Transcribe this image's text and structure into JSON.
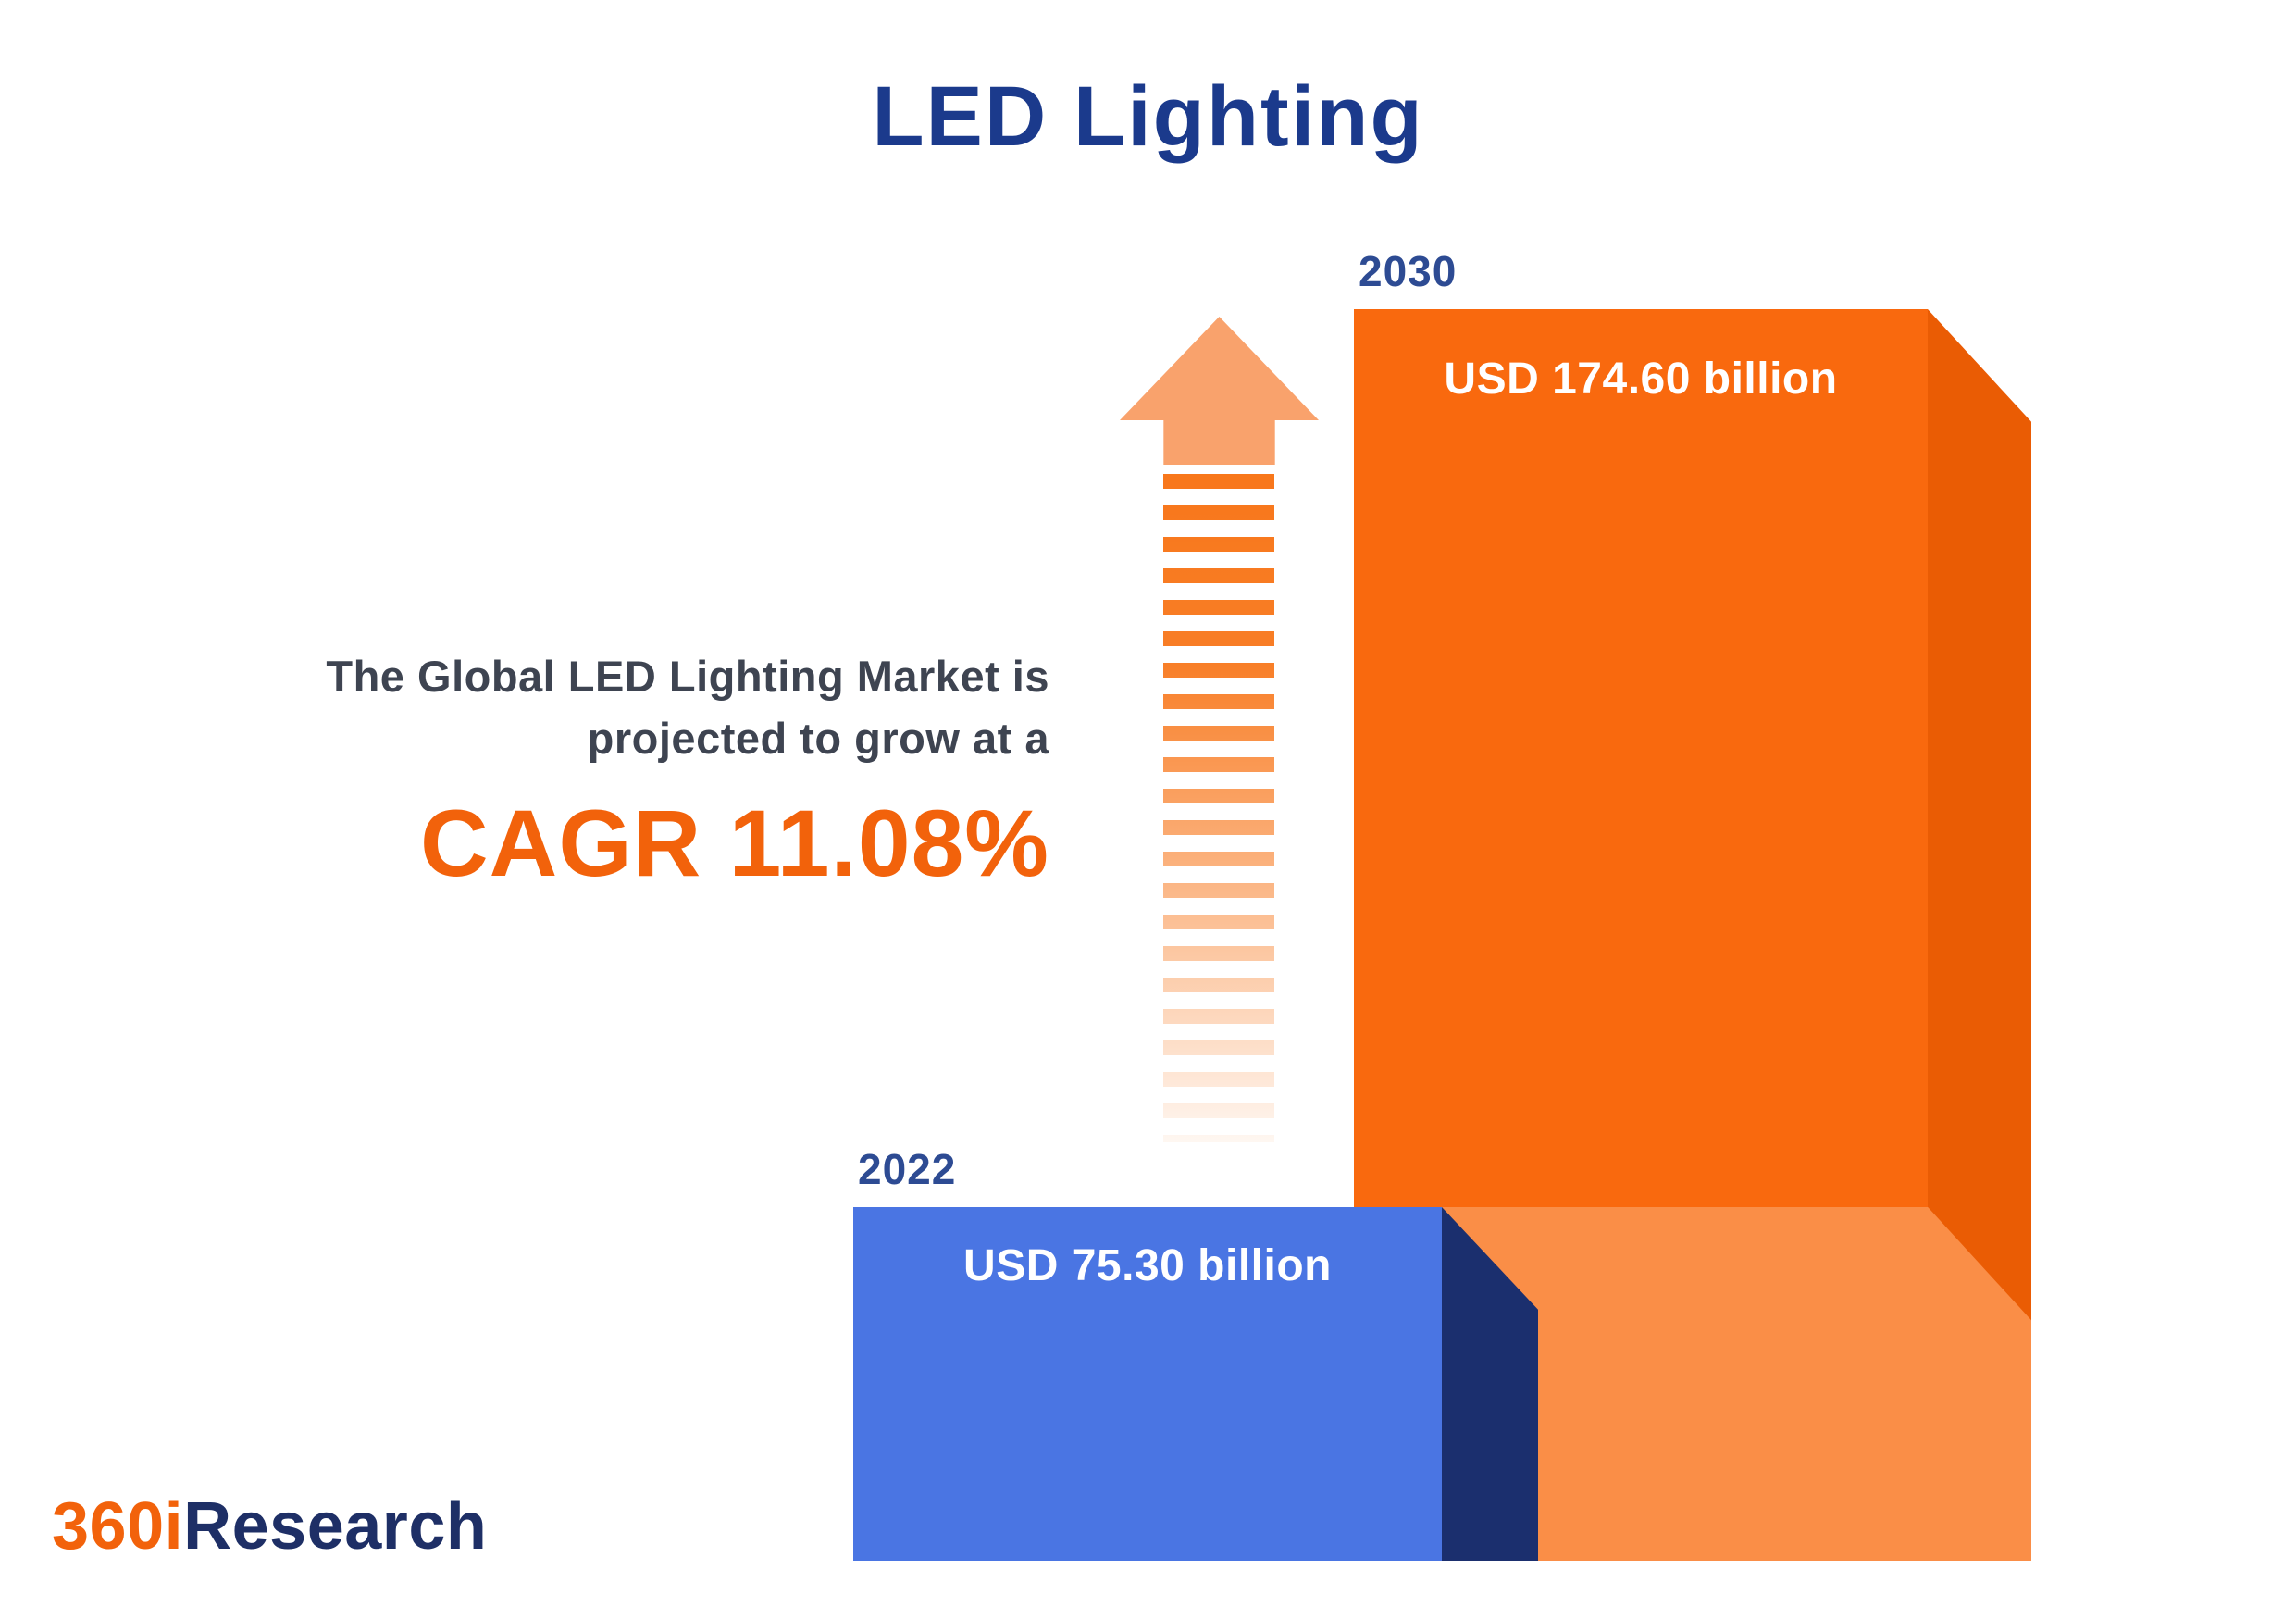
{
  "page": {
    "title": "LED Lighting"
  },
  "annotation": {
    "line1": "The Global LED Lighting Market is",
    "line2": "projected to grow at a",
    "cagr": "CAGR 11.08%"
  },
  "bars": [
    {
      "year": "2022",
      "value_label": "USD 75.30 billion",
      "color": "#4a75e3"
    },
    {
      "year": "2030",
      "value_label": "USD 174.60 billion",
      "color": "#f9690e"
    }
  ],
  "logo": {
    "part1": "360i",
    "part2": "Research"
  },
  "chart_data": {
    "type": "bar",
    "title": "LED Lighting",
    "categories": [
      "2022",
      "2030"
    ],
    "values": [
      75.3,
      174.6
    ],
    "unit": "USD billion",
    "value_labels": [
      "USD 75.30 billion",
      "USD 174.60 billion"
    ],
    "cagr_percent": 11.08,
    "annotation": "The Global LED Lighting Market is projected to grow at a CAGR 11.08%",
    "bar_colors": [
      "#4a75e3",
      "#f9690e"
    ],
    "accent_orange": "#f2620b",
    "accent_navy": "#1b3a8c",
    "source": "360iResearch",
    "legend": "none",
    "grid": false
  }
}
